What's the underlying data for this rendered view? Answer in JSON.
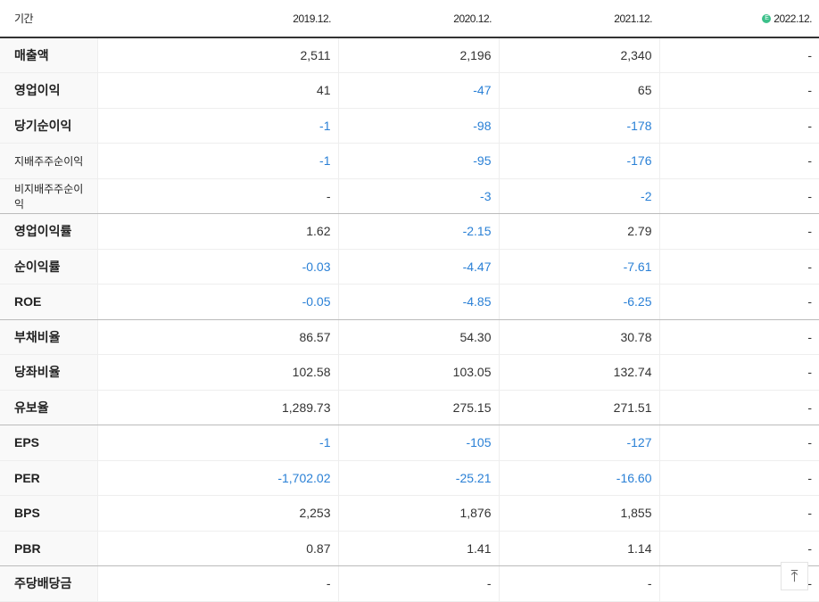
{
  "header": {
    "label": "기간",
    "periods": [
      "2019.12.",
      "2020.12.",
      "2021.12.",
      "2022.12."
    ],
    "estimate_badge": "E"
  },
  "rows": [
    {
      "label": "매출액",
      "values": [
        "2,511",
        "2,196",
        "2,340",
        "-"
      ]
    },
    {
      "label": "영업이익",
      "values": [
        "41",
        "-47",
        "65",
        "-"
      ]
    },
    {
      "label": "당기순이익",
      "values": [
        "-1",
        "-98",
        "-178",
        "-"
      ]
    },
    {
      "label": "지배주주순이익",
      "values": [
        "-1",
        "-95",
        "-176",
        "-"
      ]
    },
    {
      "label": "비지배주주순이익",
      "values": [
        "-",
        "-3",
        "-2",
        "-"
      ]
    },
    {
      "label": "영업이익률",
      "values": [
        "1.62",
        "-2.15",
        "2.79",
        "-"
      ]
    },
    {
      "label": "순이익률",
      "values": [
        "-0.03",
        "-4.47",
        "-7.61",
        "-"
      ]
    },
    {
      "label": "ROE",
      "values": [
        "-0.05",
        "-4.85",
        "-6.25",
        "-"
      ]
    },
    {
      "label": "부채비율",
      "values": [
        "86.57",
        "54.30",
        "30.78",
        "-"
      ]
    },
    {
      "label": "당좌비율",
      "values": [
        "102.58",
        "103.05",
        "132.74",
        "-"
      ]
    },
    {
      "label": "유보율",
      "values": [
        "1,289.73",
        "275.15",
        "271.51",
        "-"
      ]
    },
    {
      "label": "EPS",
      "values": [
        "-1",
        "-105",
        "-127",
        "-"
      ]
    },
    {
      "label": "PER",
      "values": [
        "-1,702.02",
        "-25.21",
        "-16.60",
        "-"
      ]
    },
    {
      "label": "BPS",
      "values": [
        "2,253",
        "1,876",
        "1,855",
        "-"
      ]
    },
    {
      "label": "PBR",
      "values": [
        "0.87",
        "1.41",
        "1.14",
        "-"
      ]
    },
    {
      "label": "주당배당금",
      "values": [
        "-",
        "-",
        "-",
        "-"
      ]
    }
  ],
  "colors": {
    "negative": "#2a80d6",
    "estimate": "#3cc08a"
  },
  "scroll_top": {
    "icon": "arrow-up-to-top-icon",
    "glyph": "⤒"
  }
}
